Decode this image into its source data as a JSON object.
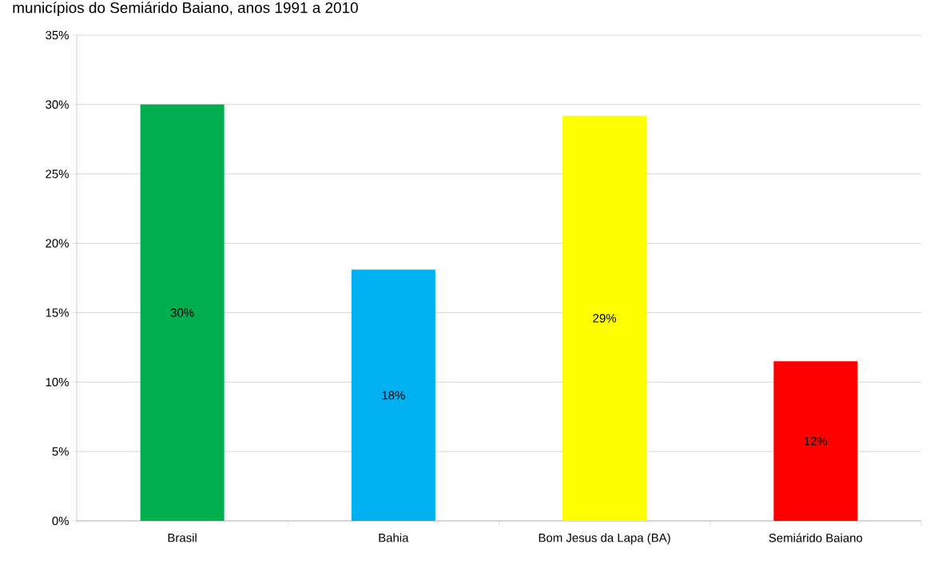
{
  "chart_data": {
    "type": "bar",
    "title": "municípios do Semiárido Baiano, anos 1991 a 2010",
    "categories": [
      "Brasil",
      "Bahia",
      "Bom Jesus da Lapa (BA)",
      "Semiárido Baiano"
    ],
    "values": [
      30,
      18.1,
      29.2,
      11.5
    ],
    "colors": [
      "#00b050",
      "#00b0f0",
      "#ffff00",
      "#ff0000"
    ],
    "value_labels": [
      "30%",
      "18%",
      "29%",
      "12%"
    ],
    "ylim": [
      0,
      35
    ],
    "yticks": [
      {
        "value": 0,
        "label": "0%"
      },
      {
        "value": 5,
        "label": "5%"
      },
      {
        "value": 10,
        "label": "10%"
      },
      {
        "value": 15,
        "label": "15%"
      },
      {
        "value": 20,
        "label": "20%"
      },
      {
        "value": 25,
        "label": "25%"
      },
      {
        "value": 30,
        "label": "30%"
      },
      {
        "value": 35,
        "label": "35%"
      }
    ],
    "grid": "y"
  }
}
